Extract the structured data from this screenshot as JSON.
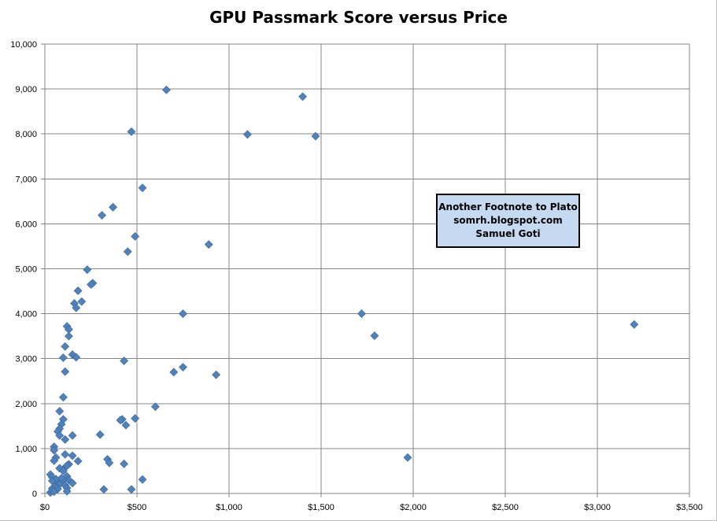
{
  "chart_data": {
    "type": "scatter",
    "title": "GPU Passmark Score versus Price",
    "xlabel": "",
    "ylabel": "",
    "xlim": [
      0,
      3500
    ],
    "ylim": [
      0,
      10000
    ],
    "x_ticks": [
      0,
      500,
      1000,
      1500,
      2000,
      2500,
      3000,
      3500
    ],
    "y_ticks": [
      0,
      1000,
      2000,
      3000,
      4000,
      5000,
      6000,
      7000,
      8000,
      9000,
      10000
    ],
    "x_tick_labels": [
      "$0",
      "$500",
      "$1,000",
      "$1,500",
      "$2,000",
      "$2,500",
      "$3,000",
      "$3,500"
    ],
    "y_tick_labels": [
      "0",
      "1,000",
      "2,000",
      "3,000",
      "4,000",
      "5,000",
      "6,000",
      "7,000",
      "8,000",
      "9,000",
      "10,000"
    ],
    "grid": true,
    "legend": "none",
    "marker": "diamond",
    "marker_color": "#4f81bd",
    "gridline_color": "#868686",
    "series": [
      {
        "points": [
          [
            660,
            8980
          ],
          [
            1400,
            8830
          ],
          [
            470,
            8050
          ],
          [
            1100,
            7990
          ],
          [
            1470,
            7950
          ],
          [
            530,
            6800
          ],
          [
            370,
            6370
          ],
          [
            310,
            6190
          ],
          [
            490,
            5720
          ],
          [
            890,
            5540
          ],
          [
            450,
            5380
          ],
          [
            230,
            4980
          ],
          [
            260,
            4680
          ],
          [
            250,
            4650
          ],
          [
            180,
            4510
          ],
          [
            200,
            4270
          ],
          [
            160,
            4230
          ],
          [
            170,
            4130
          ],
          [
            750,
            4000
          ],
          [
            1720,
            4000
          ],
          [
            3200,
            3760
          ],
          [
            120,
            3720
          ],
          [
            130,
            3650
          ],
          [
            130,
            3500
          ],
          [
            1790,
            3510
          ],
          [
            110,
            3270
          ],
          [
            150,
            3090
          ],
          [
            170,
            3030
          ],
          [
            100,
            3020
          ],
          [
            430,
            2950
          ],
          [
            750,
            2810
          ],
          [
            700,
            2700
          ],
          [
            110,
            2710
          ],
          [
            930,
            2640
          ],
          [
            100,
            2140
          ],
          [
            600,
            1930
          ],
          [
            80,
            1830
          ],
          [
            100,
            1650
          ],
          [
            490,
            1670
          ],
          [
            420,
            1650
          ],
          [
            410,
            1630
          ],
          [
            440,
            1520
          ],
          [
            90,
            1540
          ],
          [
            80,
            1440
          ],
          [
            70,
            1380
          ],
          [
            80,
            1290
          ],
          [
            150,
            1290
          ],
          [
            300,
            1310
          ],
          [
            110,
            1200
          ],
          [
            50,
            1040
          ],
          [
            50,
            960
          ],
          [
            110,
            870
          ],
          [
            150,
            840
          ],
          [
            60,
            800
          ],
          [
            180,
            720
          ],
          [
            1970,
            800
          ],
          [
            340,
            760
          ],
          [
            50,
            730
          ],
          [
            350,
            680
          ],
          [
            430,
            660
          ],
          [
            110,
            580
          ],
          [
            130,
            650
          ],
          [
            120,
            620
          ],
          [
            80,
            560
          ],
          [
            100,
            500
          ],
          [
            30,
            420
          ],
          [
            40,
            360
          ],
          [
            120,
            380
          ],
          [
            130,
            300
          ],
          [
            90,
            260
          ],
          [
            70,
            240
          ],
          [
            150,
            230
          ],
          [
            100,
            300
          ],
          [
            60,
            320
          ],
          [
            80,
            200
          ],
          [
            110,
            180
          ],
          [
            120,
            120
          ],
          [
            60,
            140
          ],
          [
            70,
            100
          ],
          [
            120,
            50
          ],
          [
            30,
            20
          ],
          [
            40,
            280
          ],
          [
            50,
            150
          ],
          [
            90,
            340
          ],
          [
            40,
            110
          ],
          [
            320,
            90
          ],
          [
            470,
            90
          ],
          [
            530,
            310
          ],
          [
            40,
            60
          ],
          [
            50,
            40
          ]
        ]
      }
    ],
    "annotation": [
      "Another Footnote to Plato",
      "somrh.blogspot.com",
      "Samuel Goti"
    ]
  }
}
